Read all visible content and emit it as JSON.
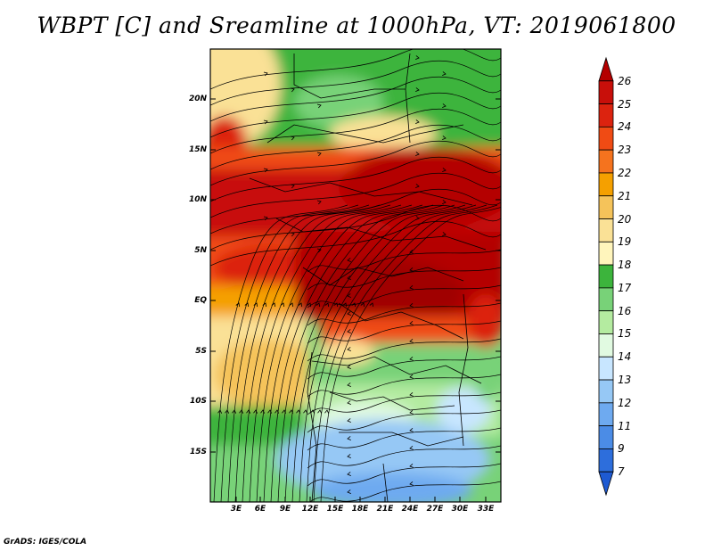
{
  "title": "WBPT [C] and Sreamline at 1000hPa, VT: 2019061800",
  "footer": "GrADS: IGES/COLA",
  "map": {
    "lat_labels": [
      "20N",
      "15N",
      "10N",
      "5N",
      "EQ",
      "5S",
      "10S",
      "15S"
    ],
    "lon_labels": [
      "3E",
      "6E",
      "9E",
      "12E",
      "15E",
      "18E",
      "21E",
      "24E",
      "27E",
      "30E",
      "33E"
    ]
  },
  "colorbar": {
    "labels": [
      "26",
      "25",
      "24",
      "23",
      "22",
      "21",
      "20",
      "19",
      "18",
      "17",
      "16",
      "15",
      "14",
      "13",
      "12",
      "11",
      "9",
      "7"
    ],
    "colors": [
      "#b40000",
      "#c80f0a",
      "#dc230f",
      "#f04b14",
      "#f5731e",
      "#f5a000",
      "#f5c35a",
      "#fae196",
      "#fff5bc",
      "#3cb43c",
      "#78d278",
      "#b4eba0",
      "#e1fae1",
      "#c8e6ff",
      "#96c8f5",
      "#6eaaf0",
      "#4b8ce6",
      "#2d6edc",
      "#1e5ad2"
    ]
  },
  "colors": {
    "red_dark": "#b40000",
    "red": "#dc230f",
    "orange": "#f5731e",
    "yellow": "#fae196",
    "green": "#3cb43c",
    "light_green": "#b4eba0",
    "blue": "#96c8f5"
  }
}
